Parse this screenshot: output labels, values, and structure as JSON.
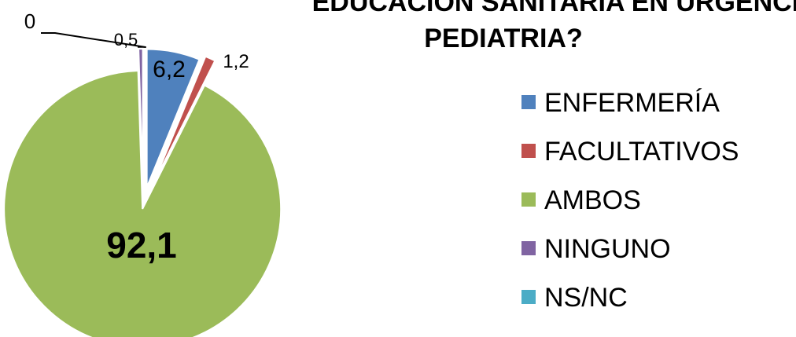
{
  "chart_data": {
    "type": "pie",
    "title": [
      "EDUCACIÓN SANITARIA EN URGENCIAS",
      "PEDIATRIA?"
    ],
    "categories": [
      "ENFERMERÍA",
      "FACULTATIVOS",
      "AMBOS",
      "NINGUNO",
      "NS/NC"
    ],
    "values": [
      6.2,
      1.2,
      92.1,
      0.5,
      0
    ],
    "value_labels": [
      "6,2",
      "1,2",
      "92,1",
      "0,5",
      "0"
    ],
    "colors": [
      "#4f81bd",
      "#c0504d",
      "#9bbb59",
      "#8064a2",
      "#4bacc6"
    ],
    "legend": "right"
  }
}
